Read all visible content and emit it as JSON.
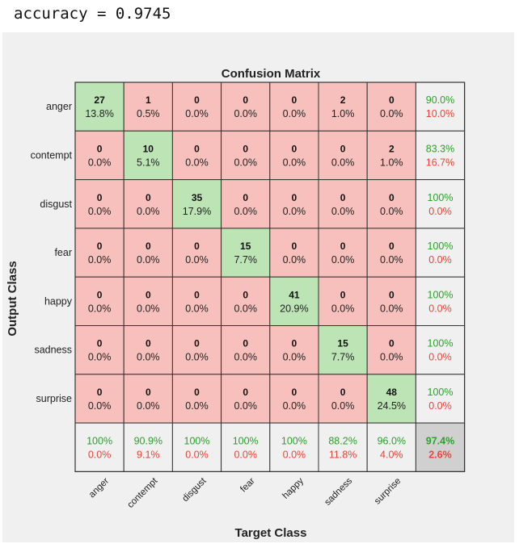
{
  "header": {
    "accuracy_text": "accuracy = 0.9745"
  },
  "colors": {
    "correct": "#bce4b5",
    "incorrect": "#f8c0bc",
    "summary": "#f0f0f0",
    "total": "#d0d0d0",
    "pct_good": "#2ca02c",
    "pct_bad": "#e8463a",
    "figure_bg": "#f0f0f0",
    "border": "#333333"
  },
  "chart_data": {
    "type": "heatmap",
    "title": "Confusion Matrix",
    "xlabel": "Target Class",
    "ylabel": "Output Class",
    "classes": [
      "anger",
      "contempt",
      "disgust",
      "fear",
      "happy",
      "sadness",
      "surprise"
    ],
    "counts": [
      [
        27,
        1,
        0,
        0,
        0,
        2,
        0
      ],
      [
        0,
        10,
        0,
        0,
        0,
        0,
        2
      ],
      [
        0,
        0,
        35,
        0,
        0,
        0,
        0
      ],
      [
        0,
        0,
        0,
        15,
        0,
        0,
        0
      ],
      [
        0,
        0,
        0,
        0,
        41,
        0,
        0
      ],
      [
        0,
        0,
        0,
        0,
        0,
        15,
        0
      ],
      [
        0,
        0,
        0,
        0,
        0,
        0,
        48
      ]
    ],
    "percents": [
      [
        "13.8%",
        "0.5%",
        "0.0%",
        "0.0%",
        "0.0%",
        "1.0%",
        "0.0%"
      ],
      [
        "0.0%",
        "5.1%",
        "0.0%",
        "0.0%",
        "0.0%",
        "0.0%",
        "1.0%"
      ],
      [
        "0.0%",
        "0.0%",
        "17.9%",
        "0.0%",
        "0.0%",
        "0.0%",
        "0.0%"
      ],
      [
        "0.0%",
        "0.0%",
        "0.0%",
        "7.7%",
        "0.0%",
        "0.0%",
        "0.0%"
      ],
      [
        "0.0%",
        "0.0%",
        "0.0%",
        "0.0%",
        "20.9%",
        "0.0%",
        "0.0%"
      ],
      [
        "0.0%",
        "0.0%",
        "0.0%",
        "0.0%",
        "0.0%",
        "7.7%",
        "0.0%"
      ],
      [
        "0.0%",
        "0.0%",
        "0.0%",
        "0.0%",
        "0.0%",
        "0.0%",
        "24.5%"
      ]
    ],
    "row_summary": [
      [
        "90.0%",
        "10.0%"
      ],
      [
        "83.3%",
        "16.7%"
      ],
      [
        "100%",
        "0.0%"
      ],
      [
        "100%",
        "0.0%"
      ],
      [
        "100%",
        "0.0%"
      ],
      [
        "100%",
        "0.0%"
      ],
      [
        "100%",
        "0.0%"
      ]
    ],
    "col_summary": [
      [
        "100%",
        "0.0%"
      ],
      [
        "90.9%",
        "9.1%"
      ],
      [
        "100%",
        "0.0%"
      ],
      [
        "100%",
        "0.0%"
      ],
      [
        "100%",
        "0.0%"
      ],
      [
        "88.2%",
        "11.8%"
      ],
      [
        "96.0%",
        "4.0%"
      ]
    ],
    "overall": [
      "97.4%",
      "2.6%"
    ]
  }
}
